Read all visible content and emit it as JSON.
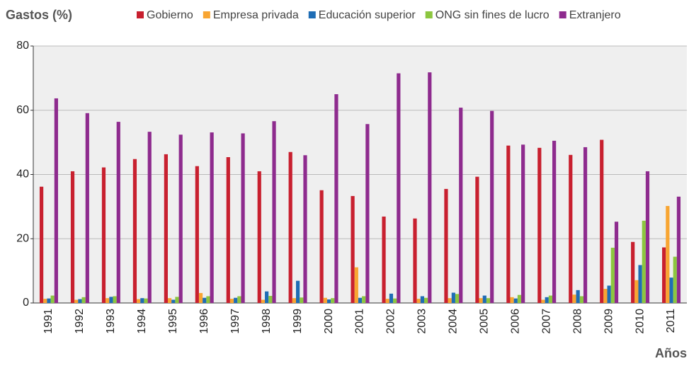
{
  "chart_data": {
    "type": "bar",
    "title": "Gastos (%)",
    "x_label": "Años",
    "categories": [
      "1991",
      "1992",
      "1993",
      "1994",
      "1995",
      "1996",
      "1997",
      "1998",
      "1999",
      "2000",
      "2001",
      "2002",
      "2003",
      "2004",
      "2005",
      "2006",
      "2007",
      "2008",
      "2009",
      "2010",
      "2011"
    ],
    "series": [
      {
        "name": "Gobierno",
        "color": "#c8202f",
        "values": [
          36.2,
          41,
          42.2,
          44.8,
          46.3,
          42.6,
          45.4,
          41,
          47,
          35.1,
          33.3,
          26.9,
          26.3,
          35.5,
          39.3,
          49,
          48.3,
          46.1,
          50.8,
          19,
          17.3
        ]
      },
      {
        "name": "Empresa privada",
        "color": "#f8a532",
        "values": [
          1.3,
          1.0,
          1.5,
          1.2,
          1.5,
          3.1,
          1.3,
          1.0,
          1.5,
          1.6,
          11.1,
          1.3,
          1.3,
          1.5,
          1.5,
          1.8,
          1.0,
          2.6,
          4.4,
          7.1,
          30.2
        ]
      },
      {
        "name": "Educación superior",
        "color": "#1f6db5",
        "values": [
          1.4,
          1.2,
          1.9,
          1.5,
          1.0,
          1.6,
          1.6,
          3.6,
          6.9,
          1.1,
          1.6,
          2.9,
          2.1,
          3.2,
          2.3,
          1.4,
          1.8,
          4.0,
          5.4,
          11.8,
          7.9
        ]
      },
      {
        "name": "ONG sin fines de lucro",
        "color": "#8cc63f",
        "values": [
          2.3,
          1.8,
          2.1,
          1.4,
          1.9,
          2.1,
          2.1,
          2.2,
          1.7,
          1.5,
          2.1,
          1.4,
          1.6,
          2.8,
          1.5,
          2.5,
          2.3,
          2.1,
          17.2,
          25.6,
          14.4
        ]
      },
      {
        "name": "Extranjero",
        "color": "#8e2b8e",
        "values": [
          63.7,
          59.1,
          56.4,
          53.3,
          52.4,
          53.1,
          52.8,
          56.6,
          46.0,
          65.0,
          55.7,
          71.5,
          71.8,
          60.8,
          59.8,
          49.3,
          50.5,
          48.5,
          25.3,
          41.0,
          33.1
        ]
      }
    ],
    "ylim": [
      0,
      80
    ],
    "yticks": [
      0,
      20,
      40,
      60,
      80
    ],
    "grid": true
  }
}
